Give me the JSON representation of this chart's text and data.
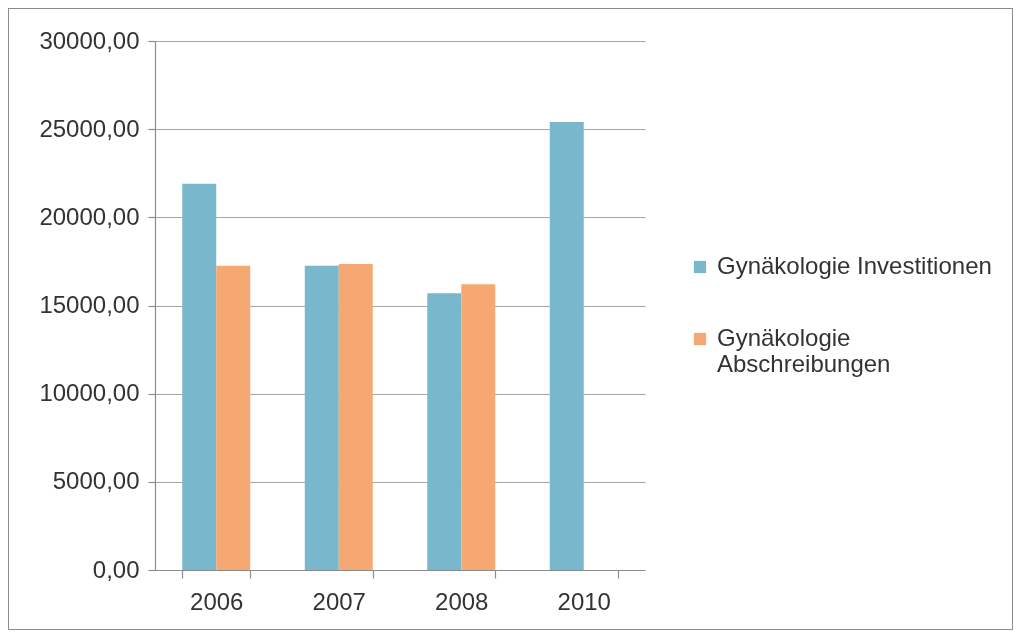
{
  "chart_data": {
    "type": "bar",
    "categories": [
      "2006",
      "2007",
      "2008",
      "2010"
    ],
    "series": [
      {
        "name": "Gynäkologie Investitionen",
        "color": "#79b8cc",
        "values": [
          21900,
          17250,
          15700,
          25400
        ]
      },
      {
        "name": "Gynäkologie Abschreibungen",
        "color": "#f6a873",
        "values": [
          17250,
          17350,
          16200,
          null
        ]
      }
    ],
    "ylim": [
      0,
      30000
    ],
    "yticks": [
      {
        "value": 0,
        "label": "0,00"
      },
      {
        "value": 5000,
        "label": "5000,00"
      },
      {
        "value": 10000,
        "label": "10000,00"
      },
      {
        "value": 15000,
        "label": "15000,00"
      },
      {
        "value": 20000,
        "label": "20000,00"
      },
      {
        "value": 25000,
        "label": "25000,00"
      },
      {
        "value": 30000,
        "label": "30000,00"
      }
    ],
    "grid": "y",
    "legend": "right"
  }
}
